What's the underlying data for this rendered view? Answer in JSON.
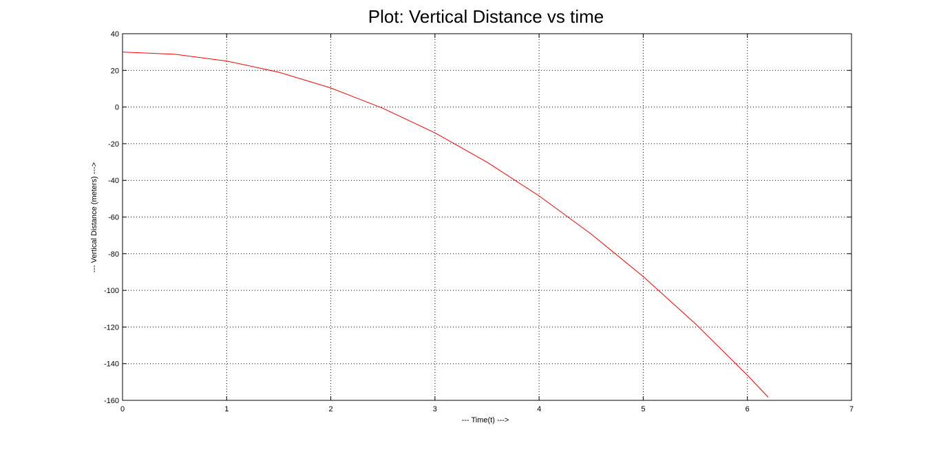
{
  "chart_data": {
    "type": "line",
    "title": "Plot: Vertical Distance vs time",
    "xlabel": "--- Time(t) --->",
    "ylabel": "--- Vertical Distance (meters) --->",
    "xlim": [
      0,
      7
    ],
    "ylim": [
      -160,
      40
    ],
    "xticks": [
      0,
      1,
      2,
      3,
      4,
      5,
      6,
      7
    ],
    "yticks": [
      40,
      20,
      0,
      -20,
      -40,
      -60,
      -80,
      -100,
      -120,
      -140,
      -160
    ],
    "grid": true,
    "grid_style": "dotted",
    "series": [
      {
        "color": "#ff0000",
        "x": [
          0,
          0.5,
          1,
          1.5,
          2,
          2.5,
          3,
          3.5,
          4,
          4.5,
          5,
          5.5,
          6,
          6.2
        ],
        "y": [
          30,
          28.8,
          25.1,
          19.0,
          10.4,
          -0.7,
          -14.1,
          -30.1,
          -48.5,
          -69.3,
          -92.5,
          -118.2,
          -146.3,
          -158.3
        ]
      }
    ]
  }
}
